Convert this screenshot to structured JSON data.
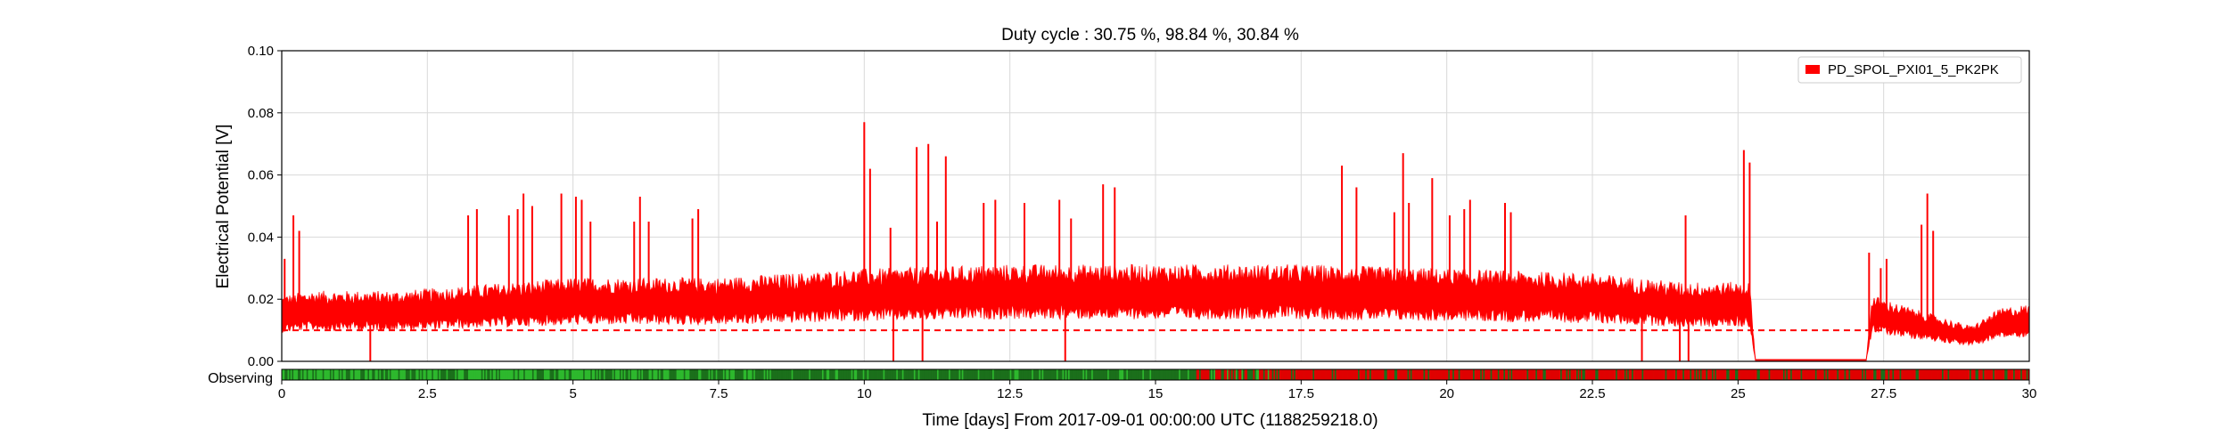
{
  "chart_data": {
    "type": "line",
    "title": "Duty cycle : 30.75 %, 98.84 %, 30.84 %",
    "xlabel": "Time [days] From 2017-09-01 00:00:00 UTC (1188259218.0)",
    "ylabel": "Electrical Potential [V]",
    "xlim": [
      0,
      30
    ],
    "ylim": [
      0,
      0.1
    ],
    "x_ticks": [
      "0",
      "2.5",
      "5",
      "7.5",
      "10",
      "12.5",
      "15",
      "17.5",
      "20",
      "22.5",
      "25",
      "27.5",
      "30"
    ],
    "y_ticks": [
      "0.00",
      "0.02",
      "0.04",
      "0.06",
      "0.08",
      "0.10"
    ],
    "grid": true,
    "legend_position": "top-right",
    "series": [
      {
        "name": "PD_SPOL_PXI01_5_PK2PK",
        "color": "#ff0000",
        "baseline": [
          [
            0.0,
            0.015
          ],
          [
            0.5,
            0.016
          ],
          [
            1.0,
            0.016
          ],
          [
            2.0,
            0.016
          ],
          [
            3.0,
            0.017
          ],
          [
            4.0,
            0.018
          ],
          [
            5.0,
            0.019
          ],
          [
            7.5,
            0.019
          ],
          [
            10.0,
            0.021
          ],
          [
            12.5,
            0.022
          ],
          [
            15.0,
            0.022
          ],
          [
            17.5,
            0.022
          ],
          [
            20.0,
            0.021
          ],
          [
            22.5,
            0.02
          ],
          [
            24.0,
            0.018
          ],
          [
            25.2,
            0.018
          ],
          [
            25.3,
            0.0
          ],
          [
            27.2,
            0.0
          ],
          [
            27.3,
            0.015
          ],
          [
            28.0,
            0.012
          ],
          [
            29.0,
            0.008
          ],
          [
            29.5,
            0.012
          ],
          [
            30.0,
            0.013
          ]
        ],
        "spikes": [
          [
            0.05,
            0.033
          ],
          [
            0.2,
            0.047
          ],
          [
            0.3,
            0.042
          ],
          [
            3.2,
            0.047
          ],
          [
            3.35,
            0.049
          ],
          [
            3.9,
            0.047
          ],
          [
            4.05,
            0.049
          ],
          [
            4.15,
            0.054
          ],
          [
            4.3,
            0.05
          ],
          [
            4.8,
            0.054
          ],
          [
            5.05,
            0.053
          ],
          [
            5.15,
            0.052
          ],
          [
            5.3,
            0.045
          ],
          [
            6.05,
            0.045
          ],
          [
            6.15,
            0.053
          ],
          [
            6.3,
            0.045
          ],
          [
            7.05,
            0.046
          ],
          [
            7.15,
            0.049
          ],
          [
            10.0,
            0.077
          ],
          [
            10.1,
            0.062
          ],
          [
            10.45,
            0.043
          ],
          [
            10.9,
            0.069
          ],
          [
            11.1,
            0.07
          ],
          [
            11.25,
            0.045
          ],
          [
            11.4,
            0.066
          ],
          [
            12.05,
            0.051
          ],
          [
            12.25,
            0.052
          ],
          [
            12.75,
            0.051
          ],
          [
            13.35,
            0.052
          ],
          [
            13.55,
            0.046
          ],
          [
            14.1,
            0.057
          ],
          [
            14.3,
            0.056
          ],
          [
            18.2,
            0.063
          ],
          [
            18.45,
            0.056
          ],
          [
            19.1,
            0.048
          ],
          [
            19.25,
            0.067
          ],
          [
            19.35,
            0.051
          ],
          [
            19.75,
            0.059
          ],
          [
            20.05,
            0.047
          ],
          [
            20.3,
            0.049
          ],
          [
            20.4,
            0.052
          ],
          [
            21.0,
            0.051
          ],
          [
            21.1,
            0.048
          ],
          [
            24.1,
            0.047
          ],
          [
            25.1,
            0.068
          ],
          [
            25.2,
            0.064
          ],
          [
            27.25,
            0.035
          ],
          [
            27.45,
            0.03
          ],
          [
            27.55,
            0.033
          ],
          [
            28.15,
            0.044
          ],
          [
            28.25,
            0.054
          ],
          [
            28.35,
            0.042
          ]
        ],
        "dips": [
          1.52,
          10.5,
          11.0,
          13.45,
          23.35,
          24.0,
          24.15
        ]
      },
      {
        "name": "",
        "style": "dashed",
        "color": "#ff0000",
        "value": 0.01
      }
    ],
    "segments": {
      "label": "Observing",
      "colors": {
        "active": "#2db82d",
        "dark": "#1b6f1b",
        "off": "#e00000"
      },
      "bands": [
        [
          0.0,
          2.8,
          "mixed"
        ],
        [
          2.8,
          8.4,
          "mixed"
        ],
        [
          8.4,
          15.7,
          "dark"
        ],
        [
          15.7,
          17.0,
          "mixed-red"
        ],
        [
          17.0,
          30.0,
          "red-mixed"
        ]
      ]
    }
  }
}
